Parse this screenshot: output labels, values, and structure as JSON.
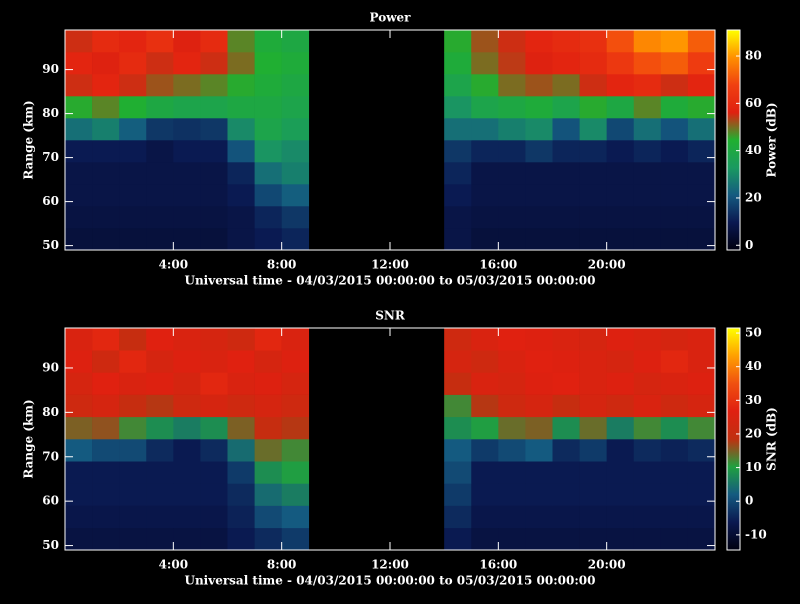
{
  "chart_data": [
    {
      "type": "heatmap",
      "title": "Power",
      "xlabel": "Universal time - 04/03/2015 00:00:00 to 05/03/2015 00:00:00",
      "ylabel": "Range (km)",
      "colorbar_label": "Power (dB)",
      "x": [
        0.5,
        1.5,
        2.5,
        3.5,
        4.5,
        5.5,
        6.5,
        7.5,
        8.5,
        9.5,
        10.5,
        11.5,
        12.5,
        13.5,
        14.5,
        15.5,
        16.5,
        17.5,
        18.5,
        19.5,
        20.5,
        21.5,
        22.5,
        23.5
      ],
      "y": [
        51.5,
        56.5,
        61.5,
        66.5,
        71.5,
        76.5,
        81.5,
        86.5,
        91.5,
        96.5
      ],
      "values": [
        [
          6,
          6,
          6,
          6,
          6,
          6,
          8,
          10,
          12,
          null,
          null,
          null,
          null,
          null,
          8,
          6,
          6,
          6,
          6,
          6,
          6,
          6,
          6,
          6
        ],
        [
          7,
          7,
          7,
          7,
          7,
          7,
          8,
          12,
          15,
          null,
          null,
          null,
          null,
          null,
          8,
          7,
          7,
          7,
          7,
          7,
          7,
          7,
          7,
          7
        ],
        [
          8,
          8,
          8,
          8,
          8,
          8,
          10,
          18,
          22,
          null,
          null,
          null,
          null,
          null,
          10,
          8,
          8,
          8,
          8,
          8,
          8,
          8,
          8,
          8
        ],
        [
          8,
          8,
          8,
          8,
          8,
          8,
          12,
          25,
          28,
          null,
          null,
          null,
          null,
          null,
          12,
          8,
          8,
          8,
          8,
          8,
          8,
          8,
          8,
          8
        ],
        [
          10,
          10,
          10,
          8,
          10,
          10,
          20,
          32,
          30,
          null,
          null,
          null,
          null,
          null,
          15,
          12,
          12,
          15,
          12,
          12,
          10,
          12,
          10,
          12
        ],
        [
          25,
          28,
          22,
          15,
          14,
          15,
          30,
          38,
          35,
          null,
          null,
          null,
          null,
          null,
          25,
          25,
          28,
          30,
          20,
          30,
          18,
          25,
          20,
          25
        ],
        [
          45,
          48,
          44,
          40,
          38,
          38,
          40,
          40,
          38,
          null,
          null,
          null,
          null,
          null,
          32,
          38,
          40,
          42,
          38,
          45,
          40,
          48,
          42,
          45
        ],
        [
          55,
          58,
          55,
          52,
          50,
          48,
          45,
          42,
          40,
          null,
          null,
          null,
          null,
          null,
          38,
          45,
          50,
          52,
          50,
          55,
          58,
          60,
          55,
          58
        ],
        [
          58,
          56,
          60,
          55,
          58,
          55,
          50,
          44,
          42,
          null,
          null,
          null,
          null,
          null,
          42,
          50,
          54,
          56,
          58,
          60,
          65,
          70,
          72,
          66
        ],
        [
          55,
          60,
          58,
          62,
          56,
          60,
          48,
          42,
          40,
          null,
          null,
          null,
          null,
          null,
          45,
          52,
          55,
          58,
          60,
          62,
          70,
          78,
          80,
          72
        ]
      ],
      "xlim": [
        0,
        24
      ],
      "xticks": [
        {
          "value": 4,
          "label": "4:00"
        },
        {
          "value": 8,
          "label": "8:00"
        },
        {
          "value": 12,
          "label": "12:00"
        },
        {
          "value": 16,
          "label": "16:00"
        },
        {
          "value": 20,
          "label": "20:00"
        }
      ],
      "ylim": [
        49,
        99
      ],
      "yticks": [
        50,
        60,
        70,
        80,
        90
      ],
      "clim": [
        -2,
        91
      ],
      "cticks": [
        0,
        20,
        40,
        60,
        80
      ],
      "colorscale": [
        "#000010",
        "#0a1850",
        "#145a80",
        "#1a9a60",
        "#20b030",
        "#e02010",
        "#f04010",
        "#ff9000",
        "#ffff00"
      ]
    },
    {
      "type": "heatmap",
      "title": "SNR",
      "xlabel": "Universal time - 04/03/2015 00:00:00 to 05/03/2015 00:00:00",
      "ylabel": "Range (km)",
      "colorbar_label": "SNR (dB)",
      "x": [
        0.5,
        1.5,
        2.5,
        3.5,
        4.5,
        5.5,
        6.5,
        7.5,
        8.5,
        9.5,
        10.5,
        11.5,
        12.5,
        13.5,
        14.5,
        15.5,
        16.5,
        17.5,
        18.5,
        19.5,
        20.5,
        21.5,
        22.5,
        23.5
      ],
      "y": [
        51.5,
        56.5,
        61.5,
        66.5,
        71.5,
        76.5,
        81.5,
        86.5,
        91.5,
        96.5
      ],
      "values": [
        [
          -8,
          -8,
          -8,
          -8,
          -8,
          -8,
          -6,
          -4,
          -2,
          null,
          null,
          null,
          null,
          null,
          -6,
          -8,
          -8,
          -8,
          -8,
          -8,
          -8,
          -8,
          -8,
          -8
        ],
        [
          -7,
          -7,
          -7,
          -7,
          -7,
          -7,
          -5,
          0,
          2,
          null,
          null,
          null,
          null,
          null,
          -4,
          -7,
          -7,
          -7,
          -7,
          -7,
          -7,
          -7,
          -7,
          -7
        ],
        [
          -6,
          -6,
          -6,
          -6,
          -6,
          -6,
          -4,
          4,
          6,
          null,
          null,
          null,
          null,
          null,
          -2,
          -6,
          -6,
          -6,
          -6,
          -6,
          -6,
          -6,
          -6,
          -6
        ],
        [
          -6,
          -6,
          -6,
          -6,
          -6,
          -6,
          -2,
          8,
          10,
          null,
          null,
          null,
          null,
          null,
          0,
          -6,
          -6,
          -6,
          -6,
          -6,
          -6,
          -6,
          -6,
          -6
        ],
        [
          2,
          0,
          0,
          -4,
          -6,
          -4,
          4,
          14,
          12,
          null,
          null,
          null,
          null,
          null,
          2,
          -2,
          0,
          2,
          -4,
          -2,
          -6,
          -4,
          -5,
          -4
        ],
        [
          15,
          16,
          12,
          8,
          6,
          8,
          15,
          20,
          18,
          null,
          null,
          null,
          null,
          null,
          8,
          10,
          14,
          15,
          8,
          14,
          6,
          12,
          8,
          12
        ],
        [
          22,
          24,
          20,
          18,
          22,
          24,
          22,
          24,
          22,
          null,
          null,
          null,
          null,
          null,
          12,
          18,
          22,
          24,
          20,
          24,
          22,
          25,
          22,
          24
        ],
        [
          24,
          27,
          25,
          26,
          24,
          28,
          25,
          26,
          24,
          null,
          null,
          null,
          null,
          null,
          20,
          25,
          24,
          26,
          27,
          25,
          26,
          24,
          25,
          26
        ],
        [
          26,
          22,
          28,
          24,
          26,
          25,
          27,
          24,
          26,
          null,
          null,
          null,
          null,
          null,
          24,
          22,
          25,
          27,
          26,
          25,
          24,
          26,
          28,
          25
        ],
        [
          25,
          28,
          20,
          27,
          25,
          24,
          22,
          28,
          25,
          null,
          null,
          null,
          null,
          null,
          22,
          25,
          27,
          26,
          25,
          24,
          26,
          25,
          24,
          25
        ]
      ],
      "xlim": [
        0,
        24
      ],
      "xticks": [
        {
          "value": 4,
          "label": "4:00"
        },
        {
          "value": 8,
          "label": "8:00"
        },
        {
          "value": 12,
          "label": "12:00"
        },
        {
          "value": 16,
          "label": "16:00"
        },
        {
          "value": 20,
          "label": "20:00"
        }
      ],
      "ylim": [
        49,
        99
      ],
      "yticks": [
        50,
        60,
        70,
        80,
        90
      ],
      "clim": [
        -14.5,
        51.5
      ],
      "cticks": [
        -10,
        0,
        10,
        20,
        30,
        40,
        50
      ],
      "colorscale": [
        "#000010",
        "#0a1850",
        "#145a80",
        "#20a040",
        "#c03010",
        "#e02010",
        "#f05010",
        "#ffa000",
        "#ffff00"
      ]
    }
  ]
}
